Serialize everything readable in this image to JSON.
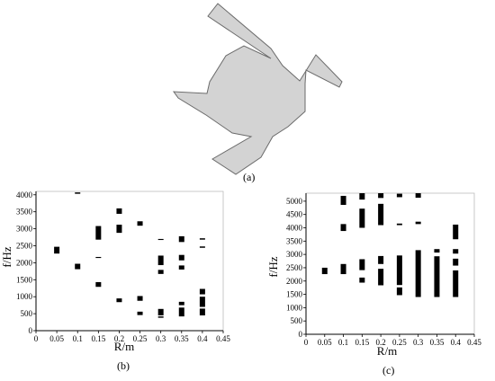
{
  "captions": {
    "a": "(a)",
    "b": "(b)",
    "c": "(c)"
  },
  "diagram": {
    "fill": "#d3d3d3",
    "stroke": "#6b6b6b"
  },
  "chart_data": [
    {
      "id": "b",
      "type": "scatter",
      "title": "",
      "xlabel": "R/m",
      "ylabel": "f/Hz",
      "xlim": [
        0,
        0.45
      ],
      "ylim": [
        0,
        4100
      ],
      "xticks": [
        0,
        0.05,
        0.1,
        0.15,
        0.2,
        0.25,
        0.3,
        0.35,
        0.4,
        0.45
      ],
      "xtick_labels": [
        "0",
        "0.05",
        "0.1",
        "0.15",
        "0.2",
        "0.25",
        "0.3",
        "0.35",
        "0.4",
        "0.45"
      ],
      "yticks": [
        0,
        500,
        1000,
        1500,
        2000,
        2500,
        3000,
        3500,
        4000
      ],
      "ytick_labels": [
        "0",
        "500",
        "1000",
        "1500",
        "2000",
        "2500",
        "3000",
        "3500",
        "4000"
      ],
      "grid": false,
      "color": "#000000",
      "marks": [
        {
          "x": 0.05,
          "y0": 2270,
          "y1": 2470
        },
        {
          "x": 0.1,
          "y0": 1810,
          "y1": 1970
        },
        {
          "x": 0.1,
          "y0": 4030,
          "y1": 4070
        },
        {
          "x": 0.15,
          "y0": 1290,
          "y1": 1430
        },
        {
          "x": 0.15,
          "y0": 2680,
          "y1": 3080
        },
        {
          "x": 0.15,
          "y0": 2140,
          "y1": 2170
        },
        {
          "x": 0.2,
          "y0": 840,
          "y1": 950
        },
        {
          "x": 0.2,
          "y0": 2880,
          "y1": 3120
        },
        {
          "x": 0.2,
          "y0": 3440,
          "y1": 3600
        },
        {
          "x": 0.25,
          "y0": 460,
          "y1": 560
        },
        {
          "x": 0.25,
          "y0": 880,
          "y1": 1020
        },
        {
          "x": 0.25,
          "y0": 3090,
          "y1": 3220
        },
        {
          "x": 0.3,
          "y0": 380,
          "y1": 420
        },
        {
          "x": 0.3,
          "y0": 450,
          "y1": 640
        },
        {
          "x": 0.3,
          "y0": 1670,
          "y1": 1790
        },
        {
          "x": 0.3,
          "y0": 1930,
          "y1": 2210
        },
        {
          "x": 0.3,
          "y0": 2670,
          "y1": 2700
        },
        {
          "x": 0.35,
          "y0": 420,
          "y1": 680
        },
        {
          "x": 0.35,
          "y0": 750,
          "y1": 850
        },
        {
          "x": 0.35,
          "y0": 1800,
          "y1": 1920
        },
        {
          "x": 0.35,
          "y0": 2070,
          "y1": 2230
        },
        {
          "x": 0.35,
          "y0": 2610,
          "y1": 2780
        },
        {
          "x": 0.4,
          "y0": 450,
          "y1": 650
        },
        {
          "x": 0.4,
          "y0": 700,
          "y1": 1000
        },
        {
          "x": 0.4,
          "y0": 1070,
          "y1": 1230
        },
        {
          "x": 0.4,
          "y0": 2440,
          "y1": 2480
        },
        {
          "x": 0.4,
          "y0": 2680,
          "y1": 2720
        }
      ]
    },
    {
      "id": "c",
      "type": "scatter",
      "title": "",
      "xlabel": "R/m",
      "ylabel": "f/Hz",
      "xlim": [
        0,
        0.45
      ],
      "ylim": [
        0,
        5300
      ],
      "xticks": [
        0,
        0.05,
        0.1,
        0.15,
        0.2,
        0.25,
        0.3,
        0.35,
        0.4,
        0.45
      ],
      "xtick_labels": [
        "0",
        "0.05",
        "0.1",
        "0.15",
        "0.2",
        "0.25",
        "0.3",
        "0.35",
        "0.4",
        "0.45"
      ],
      "yticks": [
        0,
        500,
        1000,
        1500,
        2000,
        2500,
        3000,
        3500,
        4000,
        4500,
        5000
      ],
      "ytick_labels": [
        "0",
        "500",
        "1000",
        "1500",
        "2000",
        "2500",
        "3000",
        "3500",
        "4000",
        "4500",
        "5000"
      ],
      "grid": false,
      "color": "#000000",
      "marks": [
        {
          "x": 0.05,
          "y0": 2260,
          "y1": 2500
        },
        {
          "x": 0.1,
          "y0": 2260,
          "y1": 2640
        },
        {
          "x": 0.1,
          "y0": 3880,
          "y1": 4140
        },
        {
          "x": 0.1,
          "y0": 4860,
          "y1": 5200
        },
        {
          "x": 0.15,
          "y0": 1940,
          "y1": 2130
        },
        {
          "x": 0.15,
          "y0": 2410,
          "y1": 2820
        },
        {
          "x": 0.15,
          "y0": 4000,
          "y1": 4720
        },
        {
          "x": 0.15,
          "y0": 5060,
          "y1": 5300
        },
        {
          "x": 0.2,
          "y0": 1840,
          "y1": 2460
        },
        {
          "x": 0.2,
          "y0": 2640,
          "y1": 2940
        },
        {
          "x": 0.2,
          "y0": 4100,
          "y1": 4900
        },
        {
          "x": 0.2,
          "y0": 5120,
          "y1": 5300
        },
        {
          "x": 0.25,
          "y0": 1470,
          "y1": 1760
        },
        {
          "x": 0.25,
          "y0": 1850,
          "y1": 2960
        },
        {
          "x": 0.25,
          "y0": 4100,
          "y1": 4160
        },
        {
          "x": 0.25,
          "y0": 5150,
          "y1": 5280
        },
        {
          "x": 0.3,
          "y0": 1400,
          "y1": 3160
        },
        {
          "x": 0.3,
          "y0": 4140,
          "y1": 4230
        },
        {
          "x": 0.3,
          "y0": 5130,
          "y1": 5300
        },
        {
          "x": 0.35,
          "y0": 1400,
          "y1": 2930
        },
        {
          "x": 0.35,
          "y0": 3070,
          "y1": 3200
        },
        {
          "x": 0.4,
          "y0": 1400,
          "y1": 2400
        },
        {
          "x": 0.4,
          "y0": 2580,
          "y1": 2840
        },
        {
          "x": 0.4,
          "y0": 3030,
          "y1": 3200
        },
        {
          "x": 0.4,
          "y0": 3570,
          "y1": 4120
        }
      ]
    }
  ]
}
